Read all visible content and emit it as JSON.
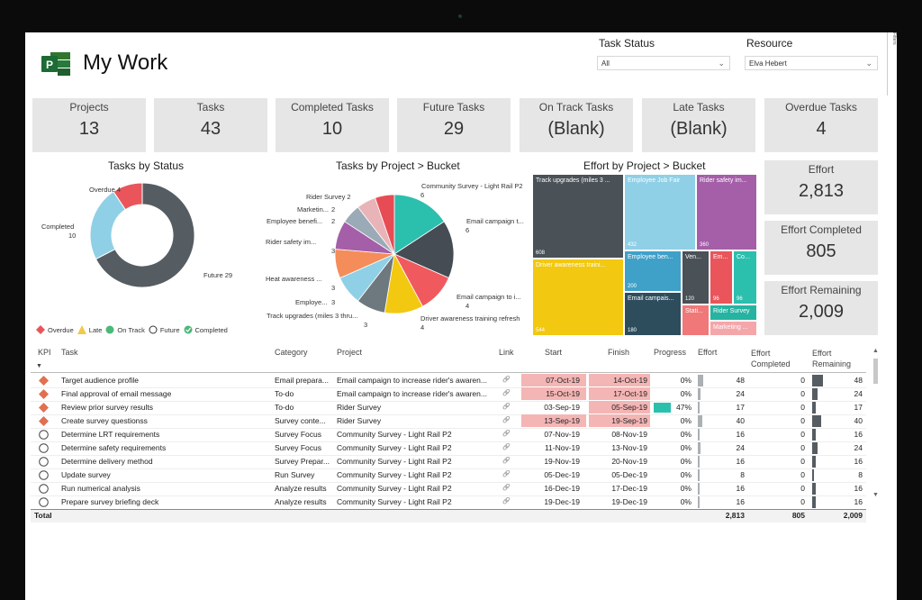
{
  "app": {
    "title": "My Work"
  },
  "slicers": {
    "task_status": {
      "label": "Task Status",
      "value": "All"
    },
    "resource": {
      "label": "Resource",
      "value": "Elva Hebert"
    },
    "filters_tab": "Filters"
  },
  "kpis": [
    {
      "label": "Projects",
      "value": "13"
    },
    {
      "label": "Tasks",
      "value": "43"
    },
    {
      "label": "Completed Tasks",
      "value": "10"
    },
    {
      "label": "Future Tasks",
      "value": "29"
    },
    {
      "label": "On Track Tasks",
      "value": "(Blank)"
    },
    {
      "label": "Late Tasks",
      "value": "(Blank)"
    },
    {
      "label": "Overdue Tasks",
      "value": "4"
    }
  ],
  "effort_cards": [
    {
      "label": "Effort",
      "value": "2,813"
    },
    {
      "label": "Effort Completed",
      "value": "805"
    },
    {
      "label": "Effort Remaining",
      "value": "2,009"
    }
  ],
  "chart_data": [
    {
      "type": "pie",
      "title": "Tasks by Status",
      "variant": "donut",
      "categories": [
        "Future",
        "Completed",
        "Overdue"
      ],
      "values": [
        29,
        10,
        4
      ],
      "colors": [
        "#555d63",
        "#8fd0e6",
        "#e9555a"
      ],
      "labels": [
        "Future 29",
        "Completed",
        "10",
        "Overdue 4"
      ],
      "legend": [
        {
          "name": "Overdue",
          "color": "#e9555a",
          "shape": "diamond"
        },
        {
          "name": "Late",
          "color": "#f2c94c",
          "shape": "triangle"
        },
        {
          "name": "On Track",
          "color": "#4cb87a",
          "shape": "circle"
        },
        {
          "name": "Future",
          "color": "#ffffff",
          "shape": "circle-outline"
        },
        {
          "name": "Completed",
          "color": "#4cb87a",
          "shape": "check-circle"
        }
      ],
      "legend_position": "bottom"
    },
    {
      "type": "pie",
      "title": "Tasks by Project > Bucket",
      "categories": [
        "Community Survey - Light Rail P2",
        "Email campaign t...",
        "Email campaign to i...",
        "Driver awareness training refresh",
        "Track upgrades (miles 3 thru...",
        "Employe...",
        "Heat awareness ...",
        "Rider safety im...",
        "Employee benefi...",
        "Marketin...",
        "Rider Survey"
      ],
      "values": [
        6,
        6,
        4,
        4,
        3,
        3,
        3,
        3,
        2,
        2,
        2
      ],
      "colors": [
        "#2bbfae",
        "#454c53",
        "#f0595d",
        "#f2c811",
        "#6e787f",
        "#8fd0e6",
        "#f48d5a",
        "#a45fa8",
        "#9aaab6",
        "#e8b4b8",
        "#e74c55"
      ],
      "labels": [
        "Community Survey - Light Rail P2",
        "6",
        "Email campaign t...",
        "6",
        "Email campaign to i...",
        "4",
        "Driver awareness training refresh",
        "4",
        "Track upgrades (miles 3 thru...",
        "3",
        "Employe...",
        "3",
        "Heat awareness ...",
        "3",
        "Rider safety im...",
        "3",
        "Employee benefi...",
        "2",
        "Marketin...",
        "2",
        "Rider Survey 2"
      ]
    },
    {
      "type": "heatmap",
      "variant": "treemap",
      "title": "Effort by Project > Bucket",
      "items": [
        {
          "label": "Track upgrades (miles 3 ...",
          "value": 608,
          "color": "#4a5157"
        },
        {
          "label": "Employee Job Fair",
          "value": 432,
          "color": "#8fd0e6"
        },
        {
          "label": "Rider safety im...",
          "value": 360,
          "color": "#a45fa8"
        },
        {
          "label": "Driver awareness traini...",
          "value": 544,
          "color": "#f2c811"
        },
        {
          "label": "Employee ben...",
          "value": 200,
          "color": "#3fa0c8"
        },
        {
          "label": "Ven...",
          "value": 120,
          "color": "#4a5157"
        },
        {
          "label": "Em...",
          "value": 96,
          "color": "#e9555a"
        },
        {
          "label": "Co...",
          "value": 96,
          "color": "#2bbfae"
        },
        {
          "label": "Email campais...",
          "value": 180,
          "color": "#2d4d5d"
        },
        {
          "label": "Stati...",
          "value": null,
          "color": "#f07878"
        },
        {
          "label": "Rider Survey",
          "value": null,
          "color": "#26b3a2"
        },
        {
          "label": "Marketing ...",
          "value": null,
          "color": "#f4a7aa"
        }
      ]
    }
  ],
  "table": {
    "headers": {
      "kpi": "KPI",
      "task": "Task",
      "category": "Category",
      "project": "Project",
      "link": "Link",
      "start": "Start",
      "finish": "Finish",
      "progress": "Progress",
      "effort": "Effort",
      "effort_completed": "Effort Completed",
      "effort_remaining": "Effort Remaining"
    },
    "rows": [
      {
        "kpi": "overdue",
        "task": "Target audience profile",
        "category": "Email prepara...",
        "project": "Email campaign to increase rider's awaren...",
        "start": "07-Oct-19",
        "finish": "14-Oct-19",
        "progress": "0%",
        "progress_pct": 0,
        "effort": "48",
        "effort_completed": "0",
        "effort_remaining": "48",
        "start_hl": true,
        "finish_hl": true
      },
      {
        "kpi": "overdue",
        "task": "Final approval of email message",
        "category": "To-do",
        "project": "Email campaign to increase rider's awaren...",
        "start": "15-Oct-19",
        "finish": "17-Oct-19",
        "progress": "0%",
        "progress_pct": 0,
        "effort": "24",
        "effort_completed": "0",
        "effort_remaining": "24",
        "start_hl": true,
        "finish_hl": true
      },
      {
        "kpi": "overdue",
        "task": "Review prior survey results",
        "category": "To-do",
        "project": "Rider Survey",
        "start": "03-Sep-19",
        "finish": "05-Sep-19",
        "progress": "47%",
        "progress_pct": 47,
        "effort": "17",
        "effort_completed": "0",
        "effort_remaining": "17",
        "start_hl": false,
        "finish_hl": true
      },
      {
        "kpi": "overdue",
        "task": "Create survey questionss",
        "category": "Survey conte...",
        "project": "Rider Survey",
        "start": "13-Sep-19",
        "finish": "19-Sep-19",
        "progress": "0%",
        "progress_pct": 0,
        "effort": "40",
        "effort_completed": "0",
        "effort_remaining": "40",
        "start_hl": true,
        "finish_hl": true
      },
      {
        "kpi": "future",
        "task": "Determine LRT requirements",
        "category": "Survey Focus",
        "project": "Community Survey - Light Rail P2",
        "start": "07-Nov-19",
        "finish": "08-Nov-19",
        "progress": "0%",
        "progress_pct": 0,
        "effort": "16",
        "effort_completed": "0",
        "effort_remaining": "16",
        "start_hl": false,
        "finish_hl": false
      },
      {
        "kpi": "future",
        "task": "Determine safety requirements",
        "category": "Survey Focus",
        "project": "Community Survey - Light Rail P2",
        "start": "11-Nov-19",
        "finish": "13-Nov-19",
        "progress": "0%",
        "progress_pct": 0,
        "effort": "24",
        "effort_completed": "0",
        "effort_remaining": "24",
        "start_hl": false,
        "finish_hl": false
      },
      {
        "kpi": "future",
        "task": "Determine delivery method",
        "category": "Survey Prepar...",
        "project": "Community Survey - Light Rail P2",
        "start": "19-Nov-19",
        "finish": "20-Nov-19",
        "progress": "0%",
        "progress_pct": 0,
        "effort": "16",
        "effort_completed": "0",
        "effort_remaining": "16",
        "start_hl": false,
        "finish_hl": false
      },
      {
        "kpi": "future",
        "task": "Update survey",
        "category": "Run Survey",
        "project": "Community Survey - Light Rail P2",
        "start": "05-Dec-19",
        "finish": "05-Dec-19",
        "progress": "0%",
        "progress_pct": 0,
        "effort": "8",
        "effort_completed": "0",
        "effort_remaining": "8",
        "start_hl": false,
        "finish_hl": false
      },
      {
        "kpi": "future",
        "task": "Run numerical analysis",
        "category": "Analyze results",
        "project": "Community Survey - Light Rail P2",
        "start": "16-Dec-19",
        "finish": "17-Dec-19",
        "progress": "0%",
        "progress_pct": 0,
        "effort": "16",
        "effort_completed": "0",
        "effort_remaining": "16",
        "start_hl": false,
        "finish_hl": false
      },
      {
        "kpi": "future",
        "task": "Prepare survey briefing deck",
        "category": "Analyze results",
        "project": "Community Survey - Light Rail P2",
        "start": "19-Dec-19",
        "finish": "19-Dec-19",
        "progress": "0%",
        "progress_pct": 0,
        "effort": "16",
        "effort_completed": "0",
        "effort_remaining": "16",
        "start_hl": false,
        "finish_hl": false
      }
    ],
    "total": {
      "label": "Total",
      "effort": "2,813",
      "effort_completed": "805",
      "effort_remaining": "2,009"
    },
    "colors": {
      "highlight": "#f4b5b5",
      "progress": "#2bbfae",
      "bar": "#555d63",
      "overdue": "#e07050"
    }
  }
}
